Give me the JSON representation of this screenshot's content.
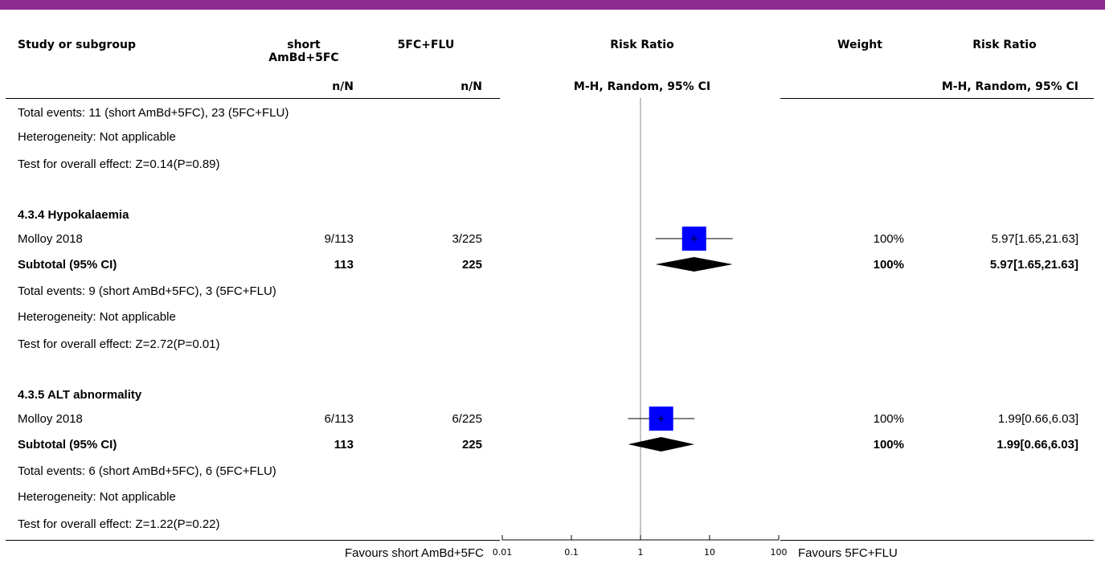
{
  "colors": {
    "accent_bar": "#8e2b8f",
    "square": "#0000ff",
    "diamond": "#000000"
  },
  "headers": {
    "study": "Study or subgroup",
    "group1": "short AmBd+5FC",
    "group1_line1": "short",
    "group1_line2": "AmBd+5FC",
    "group2": "5FC+FLU",
    "plot": "Risk Ratio",
    "weight": "Weight",
    "ci": "Risk Ratio",
    "sub_group1": "n/N",
    "sub_group2": "n/N",
    "sub_plot": "M-H, Random, 95% CI",
    "sub_ci": "M-H, Random, 95% CI"
  },
  "rows": [
    {
      "type": "note",
      "text": "Total events: 11 (short AmBd+5FC), 23 (5FC+FLU)"
    },
    {
      "type": "note",
      "text": "Heterogeneity: Not applicable"
    },
    {
      "type": "note",
      "text": "Test for overall effect: Z=0.14(P=0.89)"
    },
    {
      "type": "heading",
      "text": "4.3.4 Hypokalaemia"
    },
    {
      "type": "study",
      "name": "Molloy 2018",
      "g1": "9/113",
      "g2": "3/225",
      "weight": "100%",
      "ci_text": "5.97[1.65,21.63]"
    },
    {
      "type": "subtotal",
      "name": "Subtotal (95% CI)",
      "g1": "113",
      "g2": "225",
      "weight": "100%",
      "ci_text": "5.97[1.65,21.63]"
    },
    {
      "type": "note",
      "text": "Total events: 9 (short AmBd+5FC), 3 (5FC+FLU)"
    },
    {
      "type": "note",
      "text": "Heterogeneity: Not applicable"
    },
    {
      "type": "note",
      "text": "Test for overall effect: Z=2.72(P=0.01)"
    },
    {
      "type": "heading",
      "text": "4.3.5 ALT abnormality"
    },
    {
      "type": "study",
      "name": "Molloy 2018",
      "g1": "6/113",
      "g2": "6/225",
      "weight": "100%",
      "ci_text": "1.99[0.66,6.03]"
    },
    {
      "type": "subtotal",
      "name": "Subtotal (95% CI)",
      "g1": "113",
      "g2": "225",
      "weight": "100%",
      "ci_text": "1.99[0.66,6.03]"
    },
    {
      "type": "note",
      "text": "Total events: 6 (short AmBd+5FC), 6 (5FC+FLU)"
    },
    {
      "type": "note",
      "text": "Heterogeneity: Not applicable"
    },
    {
      "type": "note",
      "text": "Test for overall effect: Z=1.22(P=0.22)"
    }
  ],
  "footer": {
    "favours_left": "Favours short AmBd+5FC",
    "favours_right": "Favours 5FC+FLU"
  },
  "chart_data": {
    "type": "forest",
    "scale": "log",
    "xlim": [
      0.01,
      100
    ],
    "null_line": 1,
    "ticks": [
      0.01,
      0.1,
      1,
      10,
      100
    ],
    "tick_labels": [
      "0.01",
      "0.1",
      "1",
      "10",
      "100"
    ],
    "studies": [
      {
        "subgroup": "4.3.4 Hypokalaemia",
        "study": "Molloy 2018",
        "rr": 5.97,
        "lower": 1.65,
        "upper": 21.63,
        "weight": 100
      },
      {
        "subgroup": "4.3.5 ALT abnormality",
        "study": "Molloy 2018",
        "rr": 1.99,
        "lower": 0.66,
        "upper": 6.03,
        "weight": 100
      }
    ],
    "subtotals": [
      {
        "subgroup": "4.3.4 Hypokalaemia",
        "rr": 5.97,
        "lower": 1.65,
        "upper": 21.63
      },
      {
        "subgroup": "4.3.5 ALT abnormality",
        "rr": 1.99,
        "lower": 0.66,
        "upper": 6.03
      }
    ]
  }
}
